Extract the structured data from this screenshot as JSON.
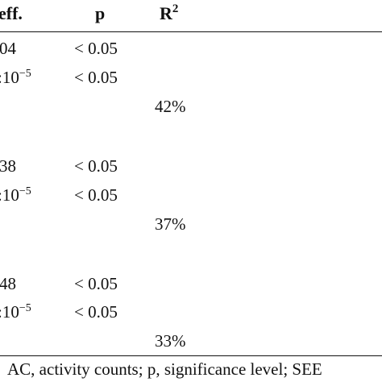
{
  "table": {
    "header": {
      "coef": "eff.",
      "p": "p",
      "r2_base": "R",
      "r2_sup": "2"
    },
    "groups": [
      {
        "rows": [
          {
            "coef": "04",
            "p": "< 0.05"
          },
          {
            "coef_base": ":10",
            "coef_sup": "−5",
            "p": "< 0.05"
          }
        ],
        "r2": "42%"
      },
      {
        "rows": [
          {
            "coef": "38",
            "p": "< 0.05"
          },
          {
            "coef_base": ":10",
            "coef_sup": "−5",
            "p": "< 0.05"
          }
        ],
        "r2": "37%"
      },
      {
        "rows": [
          {
            "coef": "48",
            "p": "< 0.05"
          },
          {
            "coef_base": ":10",
            "coef_sup": "−5",
            "p": "< 0.05"
          }
        ],
        "r2": "33%"
      }
    ],
    "footnote": "AC, activity counts; p, significance level; SEE"
  }
}
